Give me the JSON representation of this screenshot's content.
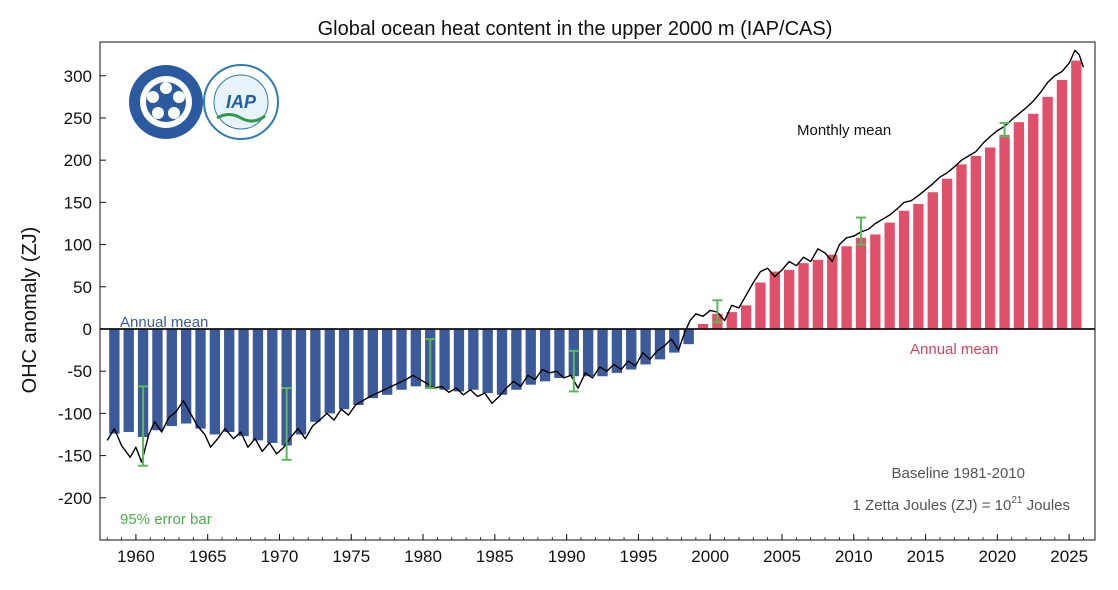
{
  "chart_data": {
    "type": "bar",
    "title": "Global ocean heat content in the upper 2000 m (IAP/CAS)",
    "xlabel": "",
    "ylabel": "OHC anomaly (ZJ)",
    "xlim": [
      1957.5,
      2026.8
    ],
    "ylim": [
      -250,
      340
    ],
    "xticks": [
      1960,
      1965,
      1970,
      1975,
      1980,
      1985,
      1990,
      1995,
      2000,
      2005,
      2010,
      2015,
      2020,
      2025
    ],
    "yticks": [
      -200,
      -150,
      -100,
      -50,
      0,
      50,
      100,
      150,
      200,
      250,
      300
    ],
    "grid": false,
    "logos": [
      "Chinese Academy of Sciences seal",
      "IAP logo"
    ],
    "annotations": {
      "annual_mean_negative": "Annual mean",
      "annual_mean_positive": "Annual mean",
      "monthly_mean": "Monthly mean",
      "error_bar": "95% error bar",
      "baseline": "Baseline 1981-2010",
      "unit_prefix": "1 Zetta Joules (ZJ) = 10",
      "unit_exp": "21",
      "unit_suffix": " Joules"
    },
    "colors": {
      "positive": "#e0506a",
      "negative": "#3c5a9a",
      "monthly": "#000000",
      "error": "#5cb85c"
    },
    "years": [
      1958,
      1959,
      1960,
      1961,
      1962,
      1963,
      1964,
      1965,
      1966,
      1967,
      1968,
      1969,
      1970,
      1971,
      1972,
      1973,
      1974,
      1975,
      1976,
      1977,
      1978,
      1979,
      1980,
      1981,
      1982,
      1983,
      1984,
      1985,
      1986,
      1987,
      1988,
      1989,
      1990,
      1991,
      1992,
      1993,
      1994,
      1995,
      1996,
      1997,
      1998,
      1999,
      2000,
      2001,
      2002,
      2003,
      2004,
      2005,
      2006,
      2007,
      2008,
      2009,
      2010,
      2011,
      2012,
      2013,
      2014,
      2015,
      2016,
      2017,
      2018,
      2019,
      2020,
      2021,
      2022,
      2023,
      2024,
      2025
    ],
    "annual_mean": [
      -124,
      -122,
      -128,
      -120,
      -115,
      -112,
      -118,
      -125,
      -122,
      -127,
      -132,
      -135,
      -138,
      -125,
      -110,
      -100,
      -95,
      -90,
      -82,
      -78,
      -72,
      -68,
      -70,
      -72,
      -74,
      -72,
      -76,
      -78,
      -72,
      -66,
      -62,
      -58,
      -56,
      -56,
      -56,
      -52,
      -48,
      -42,
      -36,
      -28,
      -18,
      6,
      18,
      20,
      28,
      55,
      68,
      70,
      78,
      82,
      88,
      98,
      108,
      112,
      126,
      140,
      148,
      162,
      178,
      195,
      205,
      215,
      230,
      245,
      255,
      275,
      295,
      318
    ],
    "monthly_anchors": [
      [
        1958.0,
        -132
      ],
      [
        1958.5,
        -118
      ],
      [
        1959.0,
        -138
      ],
      [
        1959.6,
        -152
      ],
      [
        1960.0,
        -140
      ],
      [
        1960.4,
        -158
      ],
      [
        1960.9,
        -125
      ],
      [
        1961.3,
        -110
      ],
      [
        1961.8,
        -122
      ],
      [
        1962.3,
        -105
      ],
      [
        1962.8,
        -98
      ],
      [
        1963.3,
        -85
      ],
      [
        1963.8,
        -100
      ],
      [
        1964.3,
        -115
      ],
      [
        1964.8,
        -125
      ],
      [
        1965.2,
        -140
      ],
      [
        1965.7,
        -130
      ],
      [
        1966.2,
        -118
      ],
      [
        1966.8,
        -130
      ],
      [
        1967.3,
        -122
      ],
      [
        1967.8,
        -140
      ],
      [
        1968.3,
        -130
      ],
      [
        1968.8,
        -145
      ],
      [
        1969.3,
        -135
      ],
      [
        1969.8,
        -148
      ],
      [
        1970.3,
        -140
      ],
      [
        1970.8,
        -128
      ],
      [
        1971.3,
        -118
      ],
      [
        1971.8,
        -130
      ],
      [
        1972.3,
        -115
      ],
      [
        1972.8,
        -108
      ],
      [
        1973.3,
        -100
      ],
      [
        1973.8,
        -108
      ],
      [
        1974.3,
        -95
      ],
      [
        1974.8,
        -102
      ],
      [
        1975.3,
        -90
      ],
      [
        1975.8,
        -85
      ],
      [
        1976.3,
        -80
      ],
      [
        1976.8,
        -76
      ],
      [
        1977.3,
        -72
      ],
      [
        1977.8,
        -68
      ],
      [
        1978.3,
        -64
      ],
      [
        1978.8,
        -60
      ],
      [
        1979.3,
        -55
      ],
      [
        1979.8,
        -60
      ],
      [
        1980.3,
        -65
      ],
      [
        1980.8,
        -70
      ],
      [
        1981.3,
        -68
      ],
      [
        1981.8,
        -75
      ],
      [
        1982.3,
        -70
      ],
      [
        1982.8,
        -78
      ],
      [
        1983.3,
        -72
      ],
      [
        1983.8,
        -80
      ],
      [
        1984.3,
        -76
      ],
      [
        1984.8,
        -88
      ],
      [
        1985.3,
        -80
      ],
      [
        1985.8,
        -70
      ],
      [
        1986.3,
        -62
      ],
      [
        1986.8,
        -68
      ],
      [
        1987.3,
        -55
      ],
      [
        1987.8,
        -60
      ],
      [
        1988.3,
        -48
      ],
      [
        1988.8,
        -52
      ],
      [
        1989.3,
        -50
      ],
      [
        1989.8,
        -58
      ],
      [
        1990.3,
        -55
      ],
      [
        1990.8,
        -70
      ],
      [
        1991.3,
        -52
      ],
      [
        1991.8,
        -58
      ],
      [
        1992.3,
        -45
      ],
      [
        1992.8,
        -50
      ],
      [
        1993.3,
        -42
      ],
      [
        1993.8,
        -48
      ],
      [
        1994.3,
        -38
      ],
      [
        1994.8,
        -44
      ],
      [
        1995.3,
        -28
      ],
      [
        1995.8,
        -36
      ],
      [
        1996.3,
        -26
      ],
      [
        1996.8,
        -20
      ],
      [
        1997.3,
        -12
      ],
      [
        1997.8,
        -25
      ],
      [
        1998.2,
        -5
      ],
      [
        1998.6,
        10
      ],
      [
        1999.0,
        18
      ],
      [
        1999.5,
        15
      ],
      [
        2000.0,
        22
      ],
      [
        2000.5,
        20
      ],
      [
        2001.0,
        10
      ],
      [
        2001.5,
        28
      ],
      [
        2002.0,
        25
      ],
      [
        2002.5,
        40
      ],
      [
        2003.0,
        55
      ],
      [
        2003.5,
        68
      ],
      [
        2004.0,
        72
      ],
      [
        2004.5,
        62
      ],
      [
        2005.0,
        70
      ],
      [
        2005.5,
        80
      ],
      [
        2006.0,
        75
      ],
      [
        2006.5,
        85
      ],
      [
        2007.0,
        80
      ],
      [
        2007.5,
        95
      ],
      [
        2008.0,
        90
      ],
      [
        2008.5,
        80
      ],
      [
        2009.0,
        100
      ],
      [
        2009.5,
        108
      ],
      [
        2010.0,
        110
      ],
      [
        2010.5,
        115
      ],
      [
        2011.0,
        118
      ],
      [
        2011.5,
        125
      ],
      [
        2012.0,
        130
      ],
      [
        2012.5,
        135
      ],
      [
        2013.0,
        142
      ],
      [
        2013.5,
        150
      ],
      [
        2014.0,
        152
      ],
      [
        2014.5,
        158
      ],
      [
        2015.0,
        165
      ],
      [
        2015.5,
        172
      ],
      [
        2016.0,
        180
      ],
      [
        2016.5,
        185
      ],
      [
        2017.0,
        192
      ],
      [
        2017.5,
        200
      ],
      [
        2018.0,
        205
      ],
      [
        2018.5,
        210
      ],
      [
        2019.0,
        220
      ],
      [
        2019.5,
        228
      ],
      [
        2020.0,
        235
      ],
      [
        2020.5,
        240
      ],
      [
        2021.0,
        248
      ],
      [
        2021.5,
        255
      ],
      [
        2022.0,
        262
      ],
      [
        2022.5,
        270
      ],
      [
        2023.0,
        280
      ],
      [
        2023.5,
        292
      ],
      [
        2024.0,
        300
      ],
      [
        2024.5,
        305
      ],
      [
        2025.0,
        315
      ],
      [
        2025.4,
        330
      ],
      [
        2025.7,
        325
      ],
      [
        2026.0,
        310
      ]
    ],
    "error_bars": [
      {
        "x": 1960.5,
        "lo": -162,
        "hi": -68
      },
      {
        "x": 1970.5,
        "lo": -155,
        "hi": -70
      },
      {
        "x": 1980.5,
        "lo": -70,
        "hi": -12
      },
      {
        "x": 1990.5,
        "lo": -74,
        "hi": -26
      },
      {
        "x": 2000.5,
        "lo": 8,
        "hi": 34
      },
      {
        "x": 2010.5,
        "lo": 100,
        "hi": 132
      },
      {
        "x": 2020.5,
        "lo": 228,
        "hi": 244
      }
    ]
  }
}
